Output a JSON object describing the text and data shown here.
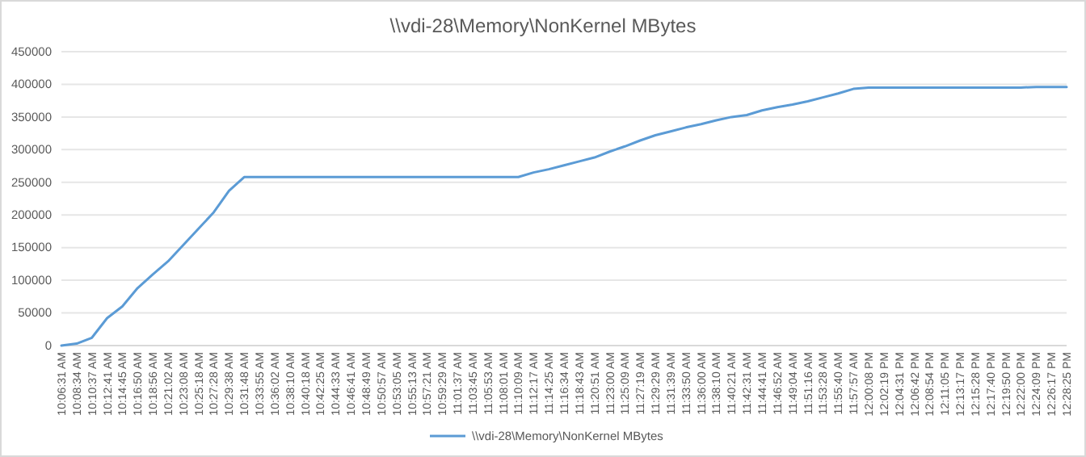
{
  "chart_data": {
    "type": "line",
    "title": "\\\\vdi-28\\Memory\\NonKernel MBytes",
    "categories": [
      "10:06:31 AM",
      "10:08:34 AM",
      "10:10:37 AM",
      "10:12:41 AM",
      "10:14:45 AM",
      "10:16:50 AM",
      "10:18:56 AM",
      "10:21:02 AM",
      "10:23:08 AM",
      "10:25:18 AM",
      "10:27:28 AM",
      "10:29:38 AM",
      "10:31:48 AM",
      "10:33:55 AM",
      "10:36:02 AM",
      "10:38:10 AM",
      "10:40:18 AM",
      "10:42:25 AM",
      "10:44:33 AM",
      "10:46:41 AM",
      "10:48:49 AM",
      "10:50:57 AM",
      "10:53:05 AM",
      "10:55:13 AM",
      "10:57:21 AM",
      "10:59:29 AM",
      "11:01:37 AM",
      "11:03:45 AM",
      "11:05:53 AM",
      "11:08:01 AM",
      "11:10:09 AM",
      "11:12:17 AM",
      "11:14:25 AM",
      "11:16:34 AM",
      "11:18:43 AM",
      "11:20:51 AM",
      "11:23:00 AM",
      "11:25:09 AM",
      "11:27:19 AM",
      "11:29:29 AM",
      "11:31:39 AM",
      "11:33:50 AM",
      "11:36:00 AM",
      "11:38:10 AM",
      "11:40:21 AM",
      "11:42:31 AM",
      "11:44:41 AM",
      "11:46:52 AM",
      "11:49:04 AM",
      "11:51:16 AM",
      "11:53:28 AM",
      "11:55:40 AM",
      "11:57:57 AM",
      "12:00:08 PM",
      "12:02:19 PM",
      "12:04:31 PM",
      "12:06:42 PM",
      "12:08:54 PM",
      "12:11:05 PM",
      "12:13:17 PM",
      "12:15:28 PM",
      "12:17:40 PM",
      "12:19:50 PM",
      "12:22:00 PM",
      "12:24:09 PM",
      "12:26:17 PM",
      "12:28:25 PM"
    ],
    "series": [
      {
        "name": "\\\\vdi-28\\Memory\\NonKernel MBytes",
        "color": "#5b9bd5",
        "values": [
          0,
          3000,
          12000,
          42000,
          60000,
          88000,
          109000,
          129000,
          154000,
          179000,
          204000,
          237000,
          258000,
          258000,
          258000,
          258000,
          258000,
          258000,
          258000,
          258000,
          258000,
          258000,
          258000,
          258000,
          258000,
          258000,
          258000,
          258000,
          258000,
          258000,
          258000,
          265000,
          270000,
          276000,
          282000,
          288000,
          297000,
          305000,
          314000,
          322000,
          328000,
          334000,
          339000,
          345000,
          350000,
          353000,
          360000,
          365000,
          369000,
          374000,
          380000,
          386000,
          393000,
          395000,
          395000,
          395000,
          395000,
          395000,
          395000,
          395000,
          395000,
          395000,
          395000,
          395000,
          396000,
          396000,
          396000
        ]
      }
    ],
    "ylim": [
      0,
      450000
    ],
    "yticks": [
      0,
      50000,
      100000,
      150000,
      200000,
      250000,
      300000,
      350000,
      400000,
      450000
    ],
    "grid": "y",
    "legend": "bottom"
  }
}
